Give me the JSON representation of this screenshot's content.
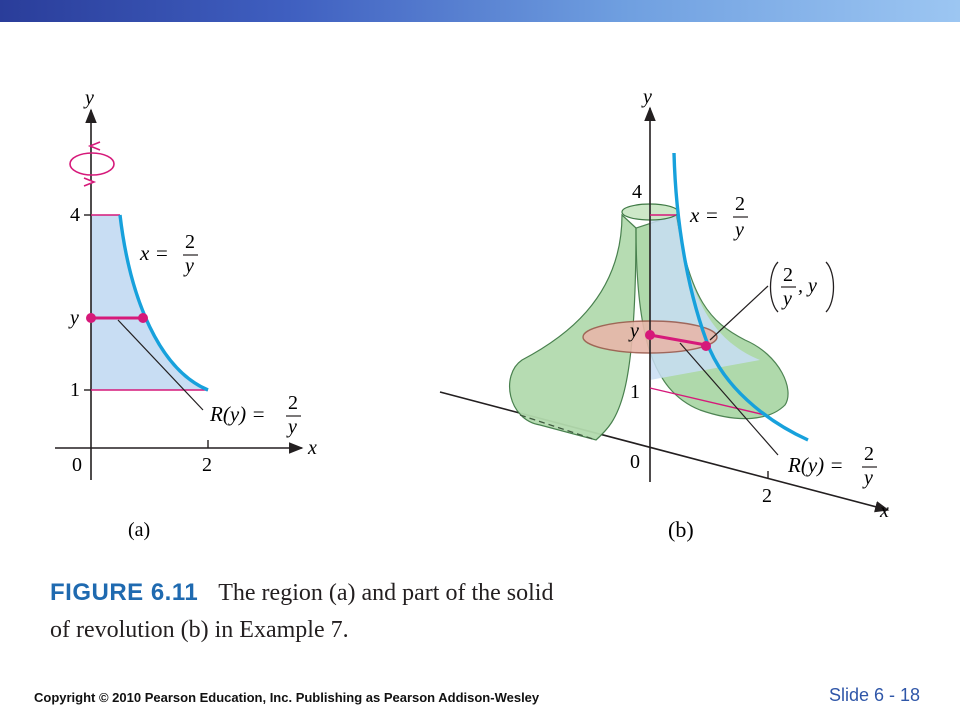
{
  "panel_a": {
    "axis_y": "y",
    "axis_x": "x",
    "tick_4": "4",
    "tick_y": "y",
    "tick_1": "1",
    "tick_0": "0",
    "tick_2": "2",
    "curve_label_lhs": "x =",
    "curve_label_num": "2",
    "curve_label_den": "y",
    "radius_label": "R(y) =",
    "radius_num": "2",
    "radius_den": "y",
    "panel_label": "(a)"
  },
  "panel_b": {
    "axis_y": "y",
    "axis_x": "x",
    "tick_4": "4",
    "tick_y": "y",
    "tick_1": "1",
    "tick_0": "0",
    "tick_2": "2",
    "curve_label_lhs": "x =",
    "curve_label_num": "2",
    "curve_label_den": "y",
    "point_num": "2",
    "point_den": "y",
    "point_y": ", y",
    "radius_label": "R(y) =",
    "radius_num": "2",
    "radius_den": "y",
    "panel_label": "(b)"
  },
  "caption": {
    "label": "FIGURE 6.11",
    "text": "The region (a) and part of the solid of revolution (b) in Example 7."
  },
  "footer": {
    "copyright": "Copyright © 2010 Pearson Education, Inc.  Publishing as Pearson Addison-Wesley",
    "slide": "Slide  6 -  18"
  },
  "colors": {
    "region_fill": "#c8ddf3",
    "curve": "#17a1dc",
    "radius": "#d6197a",
    "solid_fill": "#a9d6a4",
    "disk_fill": "#e7b7aa",
    "accent": "#1f6ab0"
  }
}
